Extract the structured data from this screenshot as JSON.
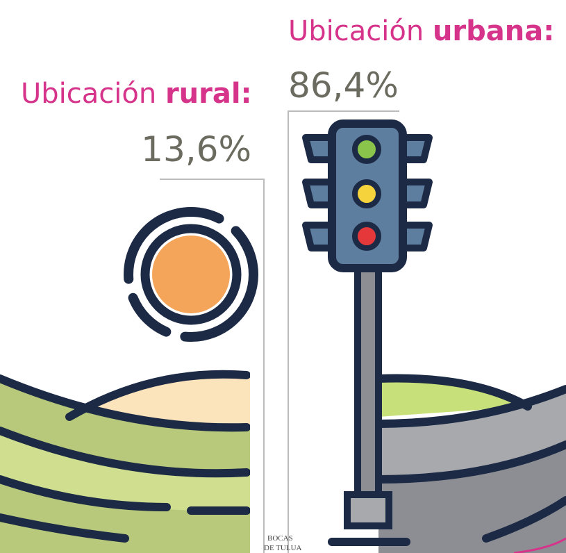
{
  "rural": {
    "label": "Ubicación",
    "label_bold": "rural:",
    "value": "13,6%"
  },
  "urban": {
    "label": "Ubicación",
    "label_bold": "urbana:",
    "value": "86,4%"
  },
  "watermark": [
    "BOCAS",
    "DE TULUA"
  ]
}
